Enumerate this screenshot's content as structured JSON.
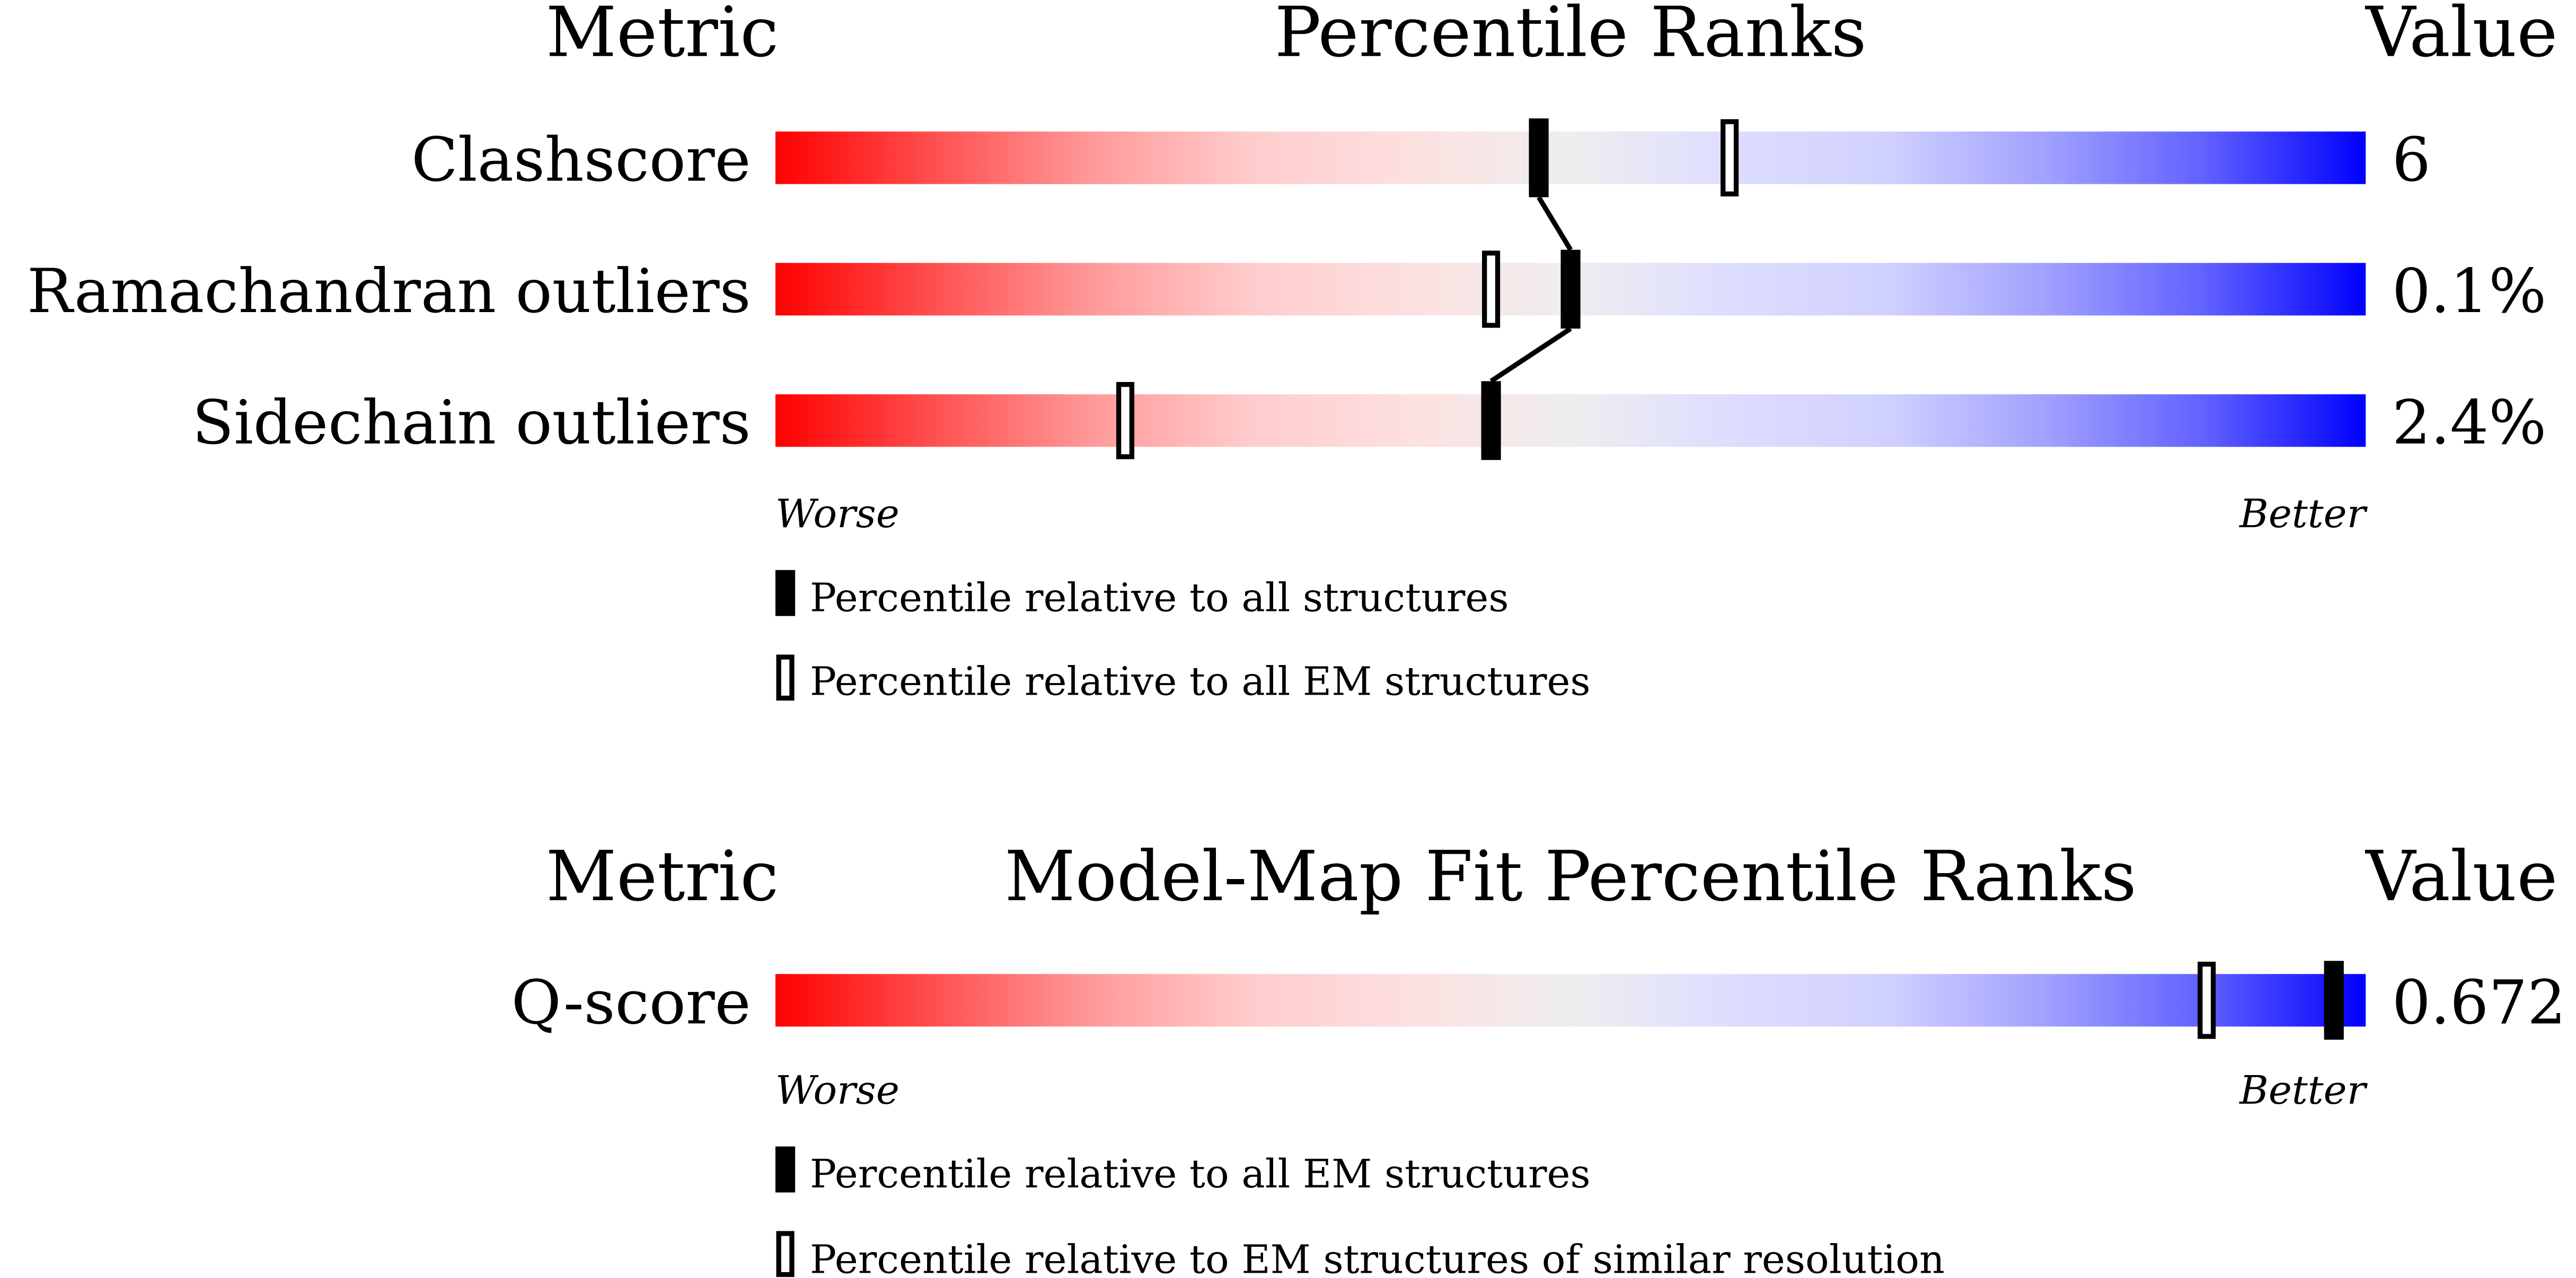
{
  "chart_data": [
    {
      "type": "bar",
      "title": "Percentile Ranks",
      "metric_header": "Metric",
      "value_header": "Value",
      "xlim": [
        0,
        100
      ],
      "worse_label": "Worse",
      "better_label": "Better",
      "gradient_colors": [
        "#ff0000",
        "#ff8080",
        "#fddddd",
        "#eeeeee",
        "#ddddff",
        "#8888ff",
        "#0000ff"
      ],
      "rows": [
        {
          "metric": "Clashscore",
          "value": "6",
          "percentile_all": 48,
          "percentile_em": 60
        },
        {
          "metric": "Ramachandran outliers",
          "value": "0.1%",
          "percentile_all": 50,
          "percentile_em": 45
        },
        {
          "metric": "Sidechain outliers",
          "value": "2.4%",
          "percentile_all": 45,
          "percentile_em": 22
        }
      ],
      "legend": [
        {
          "marker": "filled",
          "label": "Percentile relative to all structures"
        },
        {
          "marker": "open",
          "label": "Percentile relative to all EM structures"
        }
      ]
    },
    {
      "type": "bar",
      "title": "Model-Map Fit Percentile Ranks",
      "metric_header": "Metric",
      "value_header": "Value",
      "xlim": [
        0,
        100
      ],
      "worse_label": "Worse",
      "better_label": "Better",
      "rows": [
        {
          "metric": "Q-score",
          "value": "0.672",
          "percentile_all": 98,
          "percentile_em": 90
        }
      ],
      "legend": [
        {
          "marker": "filled",
          "label": "Percentile relative to all EM structures"
        },
        {
          "marker": "open",
          "label": "Percentile relative to EM structures of similar resolution"
        }
      ]
    }
  ]
}
